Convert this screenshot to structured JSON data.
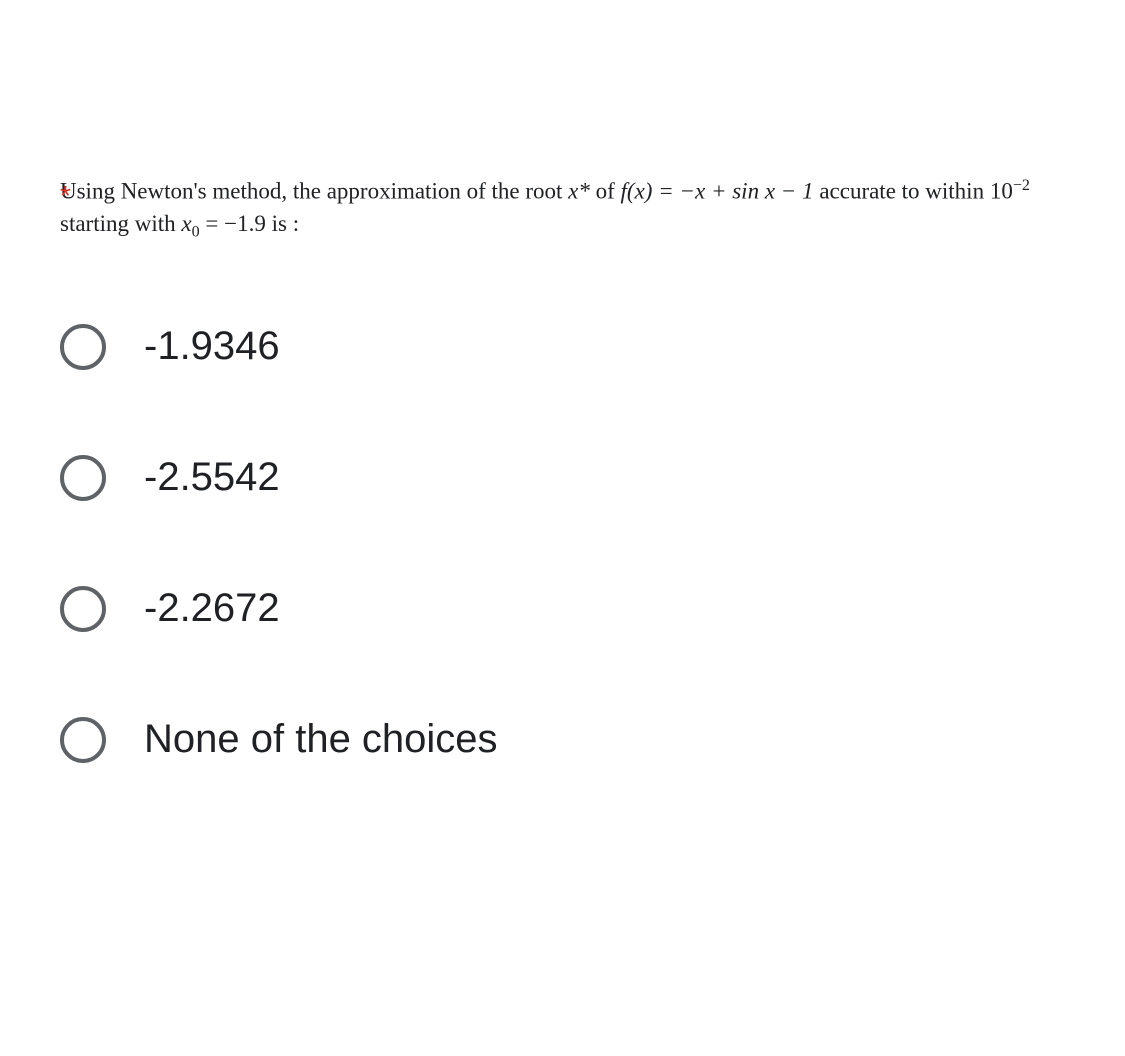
{
  "required_marker": "*",
  "question": {
    "prefix": "Using Newton's method, the approximation of the root ",
    "xstar": "x*",
    "of": " of ",
    "fx": "f(x) = −x + sin x − 1",
    "accurate": " accurate to within ",
    "tolerance_base": "10",
    "tolerance_exp": "−2",
    "starting": " starting with ",
    "x0_var": "x",
    "x0_sub": "0",
    "equals": " = −1.9  is :"
  },
  "options": [
    {
      "label": "-1.9346"
    },
    {
      "label": "-2.5542"
    },
    {
      "label": "-2.2672"
    },
    {
      "label": "None of the choices"
    }
  ],
  "colors": {
    "asterisk": "#d93025",
    "text": "#202124",
    "radio_border": "#5f6368",
    "background": "#ffffff"
  }
}
